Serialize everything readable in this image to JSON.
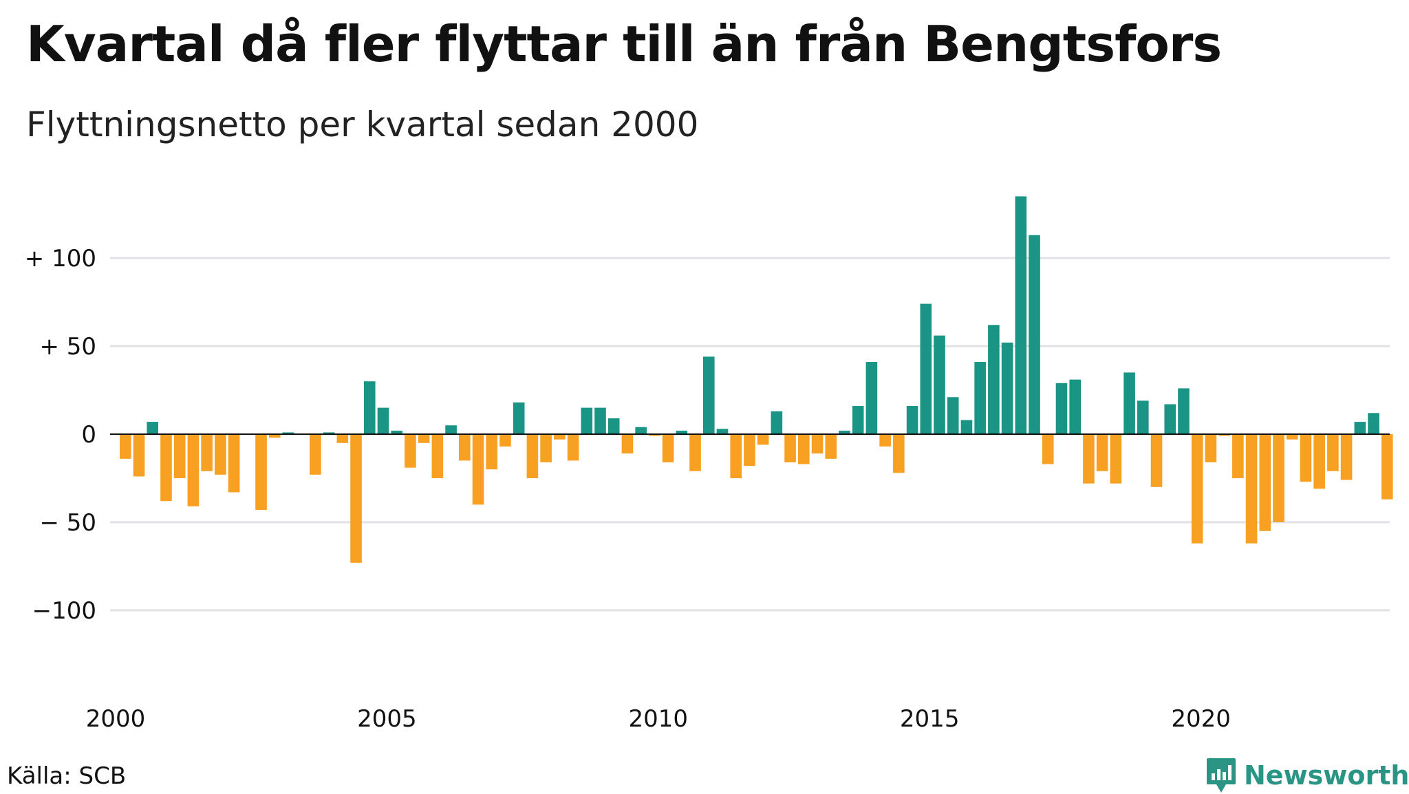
{
  "title": "Kvartal då fler flyttar till än från Bengtsfors",
  "subtitle": "Flyttningsnetto per kvartal sedan 2000",
  "source": "Källa: SCB",
  "brand": {
    "name": "Newsworthy",
    "icon": "newsworthy-logo-icon"
  },
  "colors": {
    "positive": "#1a9484",
    "negative": "#f7a021",
    "grid": "#e2e2e6",
    "zero": "#111111"
  },
  "chart_data": {
    "type": "bar",
    "x_start": "2000-Q1",
    "ylim": [
      -140,
      140
    ],
    "yticks": [
      100,
      50,
      0,
      -50,
      -100
    ],
    "ytick_labels": [
      "+ 100",
      "+  50",
      "0",
      "− 50",
      "−100"
    ],
    "xticks": [
      "2000",
      "2005",
      "2010",
      "2015",
      "2020"
    ],
    "grid": true,
    "values": [
      -14,
      -24,
      7,
      -38,
      -25,
      -41,
      -21,
      -23,
      -33,
      0,
      -43,
      -2,
      1,
      0,
      -23,
      1,
      -5,
      -73,
      30,
      15,
      2,
      -19,
      -5,
      -25,
      5,
      -15,
      -40,
      -20,
      -7,
      18,
      -25,
      -16,
      -3,
      -15,
      15,
      15,
      9,
      -11,
      4,
      -1,
      -16,
      2,
      -21,
      44,
      3,
      -25,
      -18,
      -6,
      13,
      -16,
      -17,
      -11,
      -14,
      2,
      16,
      41,
      -7,
      -22,
      16,
      74,
      56,
      21,
      8,
      41,
      62,
      52,
      135,
      113,
      -17,
      29,
      31,
      -28,
      -21,
      -28,
      35,
      19,
      -30,
      17,
      26,
      -62,
      -16,
      -1,
      -25,
      -62,
      -55,
      -50,
      -3,
      -27,
      -31,
      -21,
      -26,
      7,
      12,
      -37
    ]
  }
}
